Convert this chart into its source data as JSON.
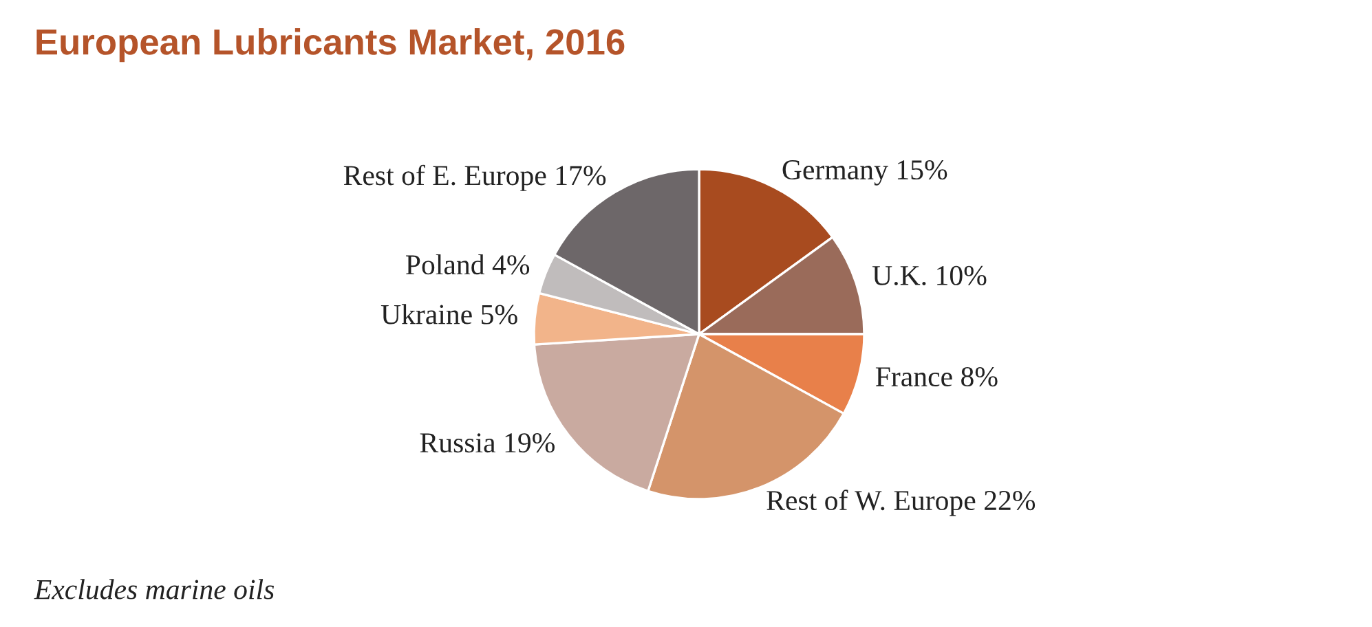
{
  "chart_data": {
    "type": "pie",
    "title": "European Lubricants Market, 2016",
    "categories": [
      "Germany",
      "U.K.",
      "France",
      "Rest of W. Europe",
      "Russia",
      "Ukraine",
      "Poland",
      "Rest of E. Europe"
    ],
    "values": [
      15,
      10,
      8,
      22,
      19,
      5,
      4,
      17
    ],
    "value_labels": [
      "15%",
      "10%",
      "8%",
      "22%",
      "19%",
      "5%",
      "4%",
      "17%"
    ],
    "colors": [
      "#a84b1f",
      "#9a6b5a",
      "#e8804a",
      "#d4946a",
      "#c9aaa0",
      "#f2b48a",
      "#c0bcbc",
      "#6d6769"
    ],
    "annotations": [
      "Excludes marine oils"
    ],
    "legend": false
  }
}
